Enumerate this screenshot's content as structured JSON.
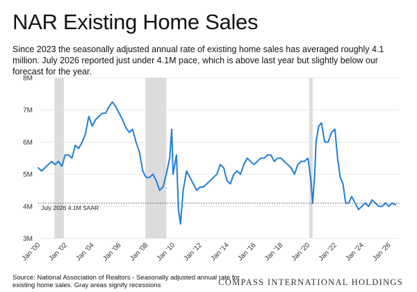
{
  "header": {
    "title": "NAR Existing Home Sales",
    "subtitle": "Since 2023 the seasonally adjusted annual rate of existing home sales has averaged roughly 4.1 million. July 2026 reported just under 4.1M pace, which is above last year but slightly below our forecast for the year."
  },
  "footer": {
    "source": "Source: National Association of Realtors - Seasonally adjusted annual rate for existing home sales. Gray areas signify recessions",
    "brand": "COMPASS INTERNATIONAL HOLDINGS"
  },
  "colors": {
    "line": "#1f7ed6",
    "recession": "#dcdcdc",
    "reference": "#333333",
    "grid": "#e3e3e3"
  },
  "chart_data": {
    "type": "line",
    "title": "NAR Existing Home Sales",
    "xlabel": "",
    "ylabel": "",
    "ylim": [
      3,
      8
    ],
    "xlim": [
      2000.0,
      2026.8
    ],
    "grid": "horizontal",
    "y_ticks": [
      {
        "value": 3,
        "label": "3M"
      },
      {
        "value": 4,
        "label": "4M"
      },
      {
        "value": 5,
        "label": "5M"
      },
      {
        "value": 6,
        "label": "6M"
      },
      {
        "value": 7,
        "label": "7M"
      },
      {
        "value": 8,
        "label": "8M"
      }
    ],
    "x_ticks": [
      {
        "value": 2000,
        "label": "Jan '00"
      },
      {
        "value": 2002,
        "label": "Jan '02"
      },
      {
        "value": 2004,
        "label": "Jan '04"
      },
      {
        "value": 2006,
        "label": "Jan '06"
      },
      {
        "value": 2008,
        "label": "Jan '08"
      },
      {
        "value": 2010,
        "label": "Jan '10"
      },
      {
        "value": 2012,
        "label": "Jan '12"
      },
      {
        "value": 2014,
        "label": "Jan '14"
      },
      {
        "value": 2016,
        "label": "Jan '16"
      },
      {
        "value": 2018,
        "label": "Jan '18"
      },
      {
        "value": 2020,
        "label": "Jan '20"
      },
      {
        "value": 2022,
        "label": "Jan '22"
      },
      {
        "value": 2024,
        "label": "Jan '24"
      },
      {
        "value": 2026,
        "label": "Jan '26"
      }
    ],
    "recessions": [
      {
        "start": 2001.2,
        "end": 2001.9
      },
      {
        "start": 2007.95,
        "end": 2009.5
      },
      {
        "start": 2020.1,
        "end": 2020.35
      }
    ],
    "reference_line": {
      "value": 4.1,
      "label": "July 2026 4.1M SAAR"
    },
    "series": [
      {
        "points": [
          [
            2000.0,
            5.2
          ],
          [
            2000.25,
            5.1
          ],
          [
            2000.5,
            5.2
          ],
          [
            2000.75,
            5.3
          ],
          [
            2001.0,
            5.4
          ],
          [
            2001.25,
            5.3
          ],
          [
            2001.5,
            5.4
          ],
          [
            2001.75,
            5.25
          ],
          [
            2002.0,
            5.6
          ],
          [
            2002.25,
            5.6
          ],
          [
            2002.5,
            5.5
          ],
          [
            2002.75,
            5.9
          ],
          [
            2003.0,
            5.8
          ],
          [
            2003.25,
            6.0
          ],
          [
            2003.5,
            6.25
          ],
          [
            2003.75,
            6.8
          ],
          [
            2004.0,
            6.5
          ],
          [
            2004.25,
            6.7
          ],
          [
            2004.5,
            6.8
          ],
          [
            2004.75,
            6.9
          ],
          [
            2005.0,
            6.9
          ],
          [
            2005.25,
            7.1
          ],
          [
            2005.5,
            7.25
          ],
          [
            2005.75,
            7.1
          ],
          [
            2006.0,
            6.9
          ],
          [
            2006.25,
            6.7
          ],
          [
            2006.5,
            6.45
          ],
          [
            2006.75,
            6.3
          ],
          [
            2007.0,
            6.4
          ],
          [
            2007.25,
            6.0
          ],
          [
            2007.5,
            5.7
          ],
          [
            2007.75,
            5.1
          ],
          [
            2008.0,
            4.9
          ],
          [
            2008.25,
            4.9
          ],
          [
            2008.5,
            5.0
          ],
          [
            2008.75,
            4.8
          ],
          [
            2009.0,
            4.5
          ],
          [
            2009.25,
            4.6
          ],
          [
            2009.5,
            5.0
          ],
          [
            2009.75,
            5.5
          ],
          [
            2009.9,
            6.4
          ],
          [
            2010.0,
            5.0
          ],
          [
            2010.25,
            5.6
          ],
          [
            2010.4,
            3.9
          ],
          [
            2010.55,
            3.45
          ],
          [
            2010.75,
            4.5
          ],
          [
            2011.0,
            5.1
          ],
          [
            2011.25,
            4.9
          ],
          [
            2011.5,
            4.7
          ],
          [
            2011.75,
            4.5
          ],
          [
            2012.0,
            4.6
          ],
          [
            2012.25,
            4.6
          ],
          [
            2012.5,
            4.7
          ],
          [
            2012.75,
            4.8
          ],
          [
            2013.0,
            4.9
          ],
          [
            2013.25,
            5.0
          ],
          [
            2013.5,
            5.3
          ],
          [
            2013.75,
            5.2
          ],
          [
            2014.0,
            4.8
          ],
          [
            2014.25,
            4.7
          ],
          [
            2014.5,
            5.0
          ],
          [
            2014.75,
            5.1
          ],
          [
            2015.0,
            5.0
          ],
          [
            2015.25,
            5.3
          ],
          [
            2015.5,
            5.5
          ],
          [
            2015.75,
            5.4
          ],
          [
            2016.0,
            5.3
          ],
          [
            2016.25,
            5.4
          ],
          [
            2016.5,
            5.5
          ],
          [
            2016.75,
            5.5
          ],
          [
            2017.0,
            5.6
          ],
          [
            2017.25,
            5.6
          ],
          [
            2017.5,
            5.4
          ],
          [
            2017.75,
            5.5
          ],
          [
            2018.0,
            5.5
          ],
          [
            2018.25,
            5.4
          ],
          [
            2018.5,
            5.3
          ],
          [
            2018.75,
            5.2
          ],
          [
            2019.0,
            5.0
          ],
          [
            2019.25,
            5.3
          ],
          [
            2019.5,
            5.4
          ],
          [
            2019.75,
            5.4
          ],
          [
            2020.0,
            5.5
          ],
          [
            2020.2,
            4.9
          ],
          [
            2020.35,
            4.1
          ],
          [
            2020.5,
            5.0
          ],
          [
            2020.6,
            6.0
          ],
          [
            2020.8,
            6.5
          ],
          [
            2021.0,
            6.6
          ],
          [
            2021.25,
            6.0
          ],
          [
            2021.5,
            6.0
          ],
          [
            2021.75,
            6.3
          ],
          [
            2022.0,
            6.4
          ],
          [
            2022.2,
            5.5
          ],
          [
            2022.4,
            4.9
          ],
          [
            2022.6,
            4.7
          ],
          [
            2022.8,
            4.1
          ],
          [
            2023.0,
            4.1
          ],
          [
            2023.25,
            4.3
          ],
          [
            2023.5,
            4.1
          ],
          [
            2023.75,
            3.9
          ],
          [
            2024.0,
            4.0
          ],
          [
            2024.25,
            4.1
          ],
          [
            2024.5,
            4.0
          ],
          [
            2024.75,
            4.2
          ],
          [
            2025.0,
            4.1
          ],
          [
            2025.25,
            4.0
          ],
          [
            2025.5,
            4.0
          ],
          [
            2025.75,
            4.1
          ],
          [
            2026.0,
            4.0
          ],
          [
            2026.25,
            4.1
          ],
          [
            2026.5,
            4.05
          ]
        ]
      }
    ]
  }
}
